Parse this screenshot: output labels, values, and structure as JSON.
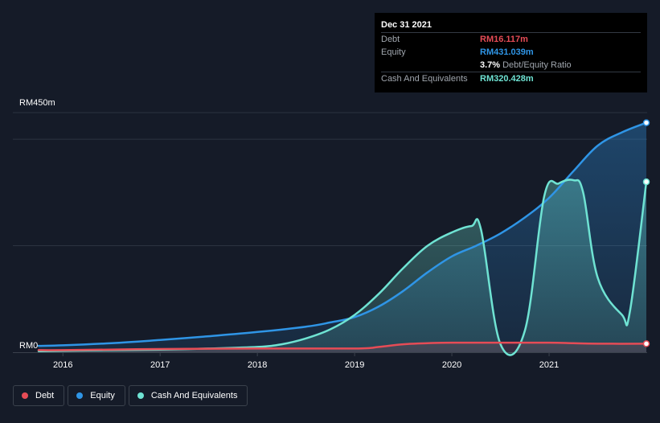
{
  "tooltip": {
    "date": "Dec 31 2021",
    "debt_label": "Debt",
    "debt_value": "RM16.117m",
    "equity_label": "Equity",
    "equity_value": "RM431.039m",
    "ratio_value": "3.7%",
    "ratio_label": "Debt/Equity Ratio",
    "cash_label": "Cash And Equivalents",
    "cash_value": "RM320.428m"
  },
  "legend": {
    "debt": "Debt",
    "equity": "Equity",
    "cash": "Cash And Equivalents"
  },
  "colors": {
    "background": "#151b28",
    "debt": "#e64c56",
    "equity": "#2f95e6",
    "cash": "#6fe3d3",
    "grid": "#2c3340"
  },
  "chart_data": {
    "type": "area",
    "ylim": [
      0,
      450
    ],
    "y_tick_labels": [
      "RM450m",
      "RM0"
    ],
    "x_tick_labels": [
      "2016",
      "2017",
      "2018",
      "2019",
      "2020",
      "2021"
    ],
    "xlim": [
      2015.75,
      2022.0
    ],
    "grid": true,
    "legend_position": "bottom-left",
    "series": [
      {
        "name": "Equity",
        "points": [
          [
            2015.75,
            12
          ],
          [
            2016.0,
            13
          ],
          [
            2016.5,
            17
          ],
          [
            2017.0,
            23
          ],
          [
            2017.5,
            30
          ],
          [
            2018.0,
            38
          ],
          [
            2018.5,
            48
          ],
          [
            2018.75,
            56
          ],
          [
            2019.0,
            66
          ],
          [
            2019.25,
            86
          ],
          [
            2019.5,
            115
          ],
          [
            2019.75,
            150
          ],
          [
            2020.0,
            180
          ],
          [
            2020.25,
            200
          ],
          [
            2020.5,
            223
          ],
          [
            2020.75,
            253
          ],
          [
            2021.0,
            290
          ],
          [
            2021.25,
            340
          ],
          [
            2021.5,
            388
          ],
          [
            2021.75,
            413
          ],
          [
            2022.0,
            431
          ]
        ]
      },
      {
        "name": "Cash And Equivalents",
        "points": [
          [
            2015.75,
            2
          ],
          [
            2016.5,
            4
          ],
          [
            2017.0,
            5
          ],
          [
            2017.5,
            7
          ],
          [
            2018.0,
            10
          ],
          [
            2018.25,
            15
          ],
          [
            2018.5,
            26
          ],
          [
            2018.75,
            43
          ],
          [
            2019.0,
            70
          ],
          [
            2019.25,
            110
          ],
          [
            2019.5,
            158
          ],
          [
            2019.75,
            200
          ],
          [
            2020.0,
            225
          ],
          [
            2020.2,
            237
          ],
          [
            2020.3,
            230
          ],
          [
            2020.5,
            15
          ],
          [
            2020.75,
            40
          ],
          [
            2020.95,
            293
          ],
          [
            2021.1,
            317
          ],
          [
            2021.25,
            323
          ],
          [
            2021.35,
            300
          ],
          [
            2021.5,
            140
          ],
          [
            2021.75,
            70
          ],
          [
            2021.83,
            75
          ],
          [
            2022.0,
            320
          ]
        ]
      },
      {
        "name": "Debt",
        "points": [
          [
            2015.75,
            4
          ],
          [
            2016.0,
            4
          ],
          [
            2017.0,
            6
          ],
          [
            2018.0,
            7
          ],
          [
            2019.0,
            7
          ],
          [
            2019.25,
            10
          ],
          [
            2019.5,
            15
          ],
          [
            2019.75,
            17
          ],
          [
            2020.0,
            18
          ],
          [
            2020.5,
            18
          ],
          [
            2021.0,
            18
          ],
          [
            2021.25,
            17
          ],
          [
            2021.5,
            16
          ],
          [
            2022.0,
            16
          ]
        ]
      }
    ]
  }
}
